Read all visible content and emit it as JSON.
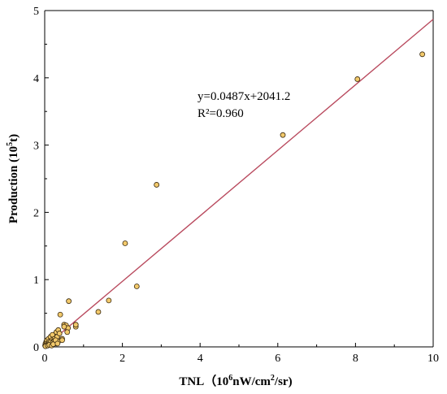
{
  "chart_data": {
    "type": "scatter",
    "xlabel": {
      "main": "TNL（",
      "exp_base": "10",
      "exp": "6",
      "unit": "nW/cm",
      "unit_exp": "2",
      "unit_tail": "/sr)"
    },
    "ylabel": {
      "main": "Production (10",
      "exp": "5",
      "tail": "t)"
    },
    "xlim": [
      0,
      10
    ],
    "ylim": [
      0,
      5
    ],
    "x_ticks": [
      "0",
      "2",
      "4",
      "6",
      "8",
      "10"
    ],
    "y_ticks": [
      "0",
      "1",
      "2",
      "3",
      "4",
      "5"
    ],
    "equation": "y=0.0487x+2041.2",
    "r2_label": "R²=0.960",
    "fit_line": {
      "x": [
        0,
        10
      ],
      "y": [
        0,
        4.87
      ]
    },
    "points": {
      "x": [
        0.01,
        0.02,
        0.03,
        0.04,
        0.05,
        0.06,
        0.08,
        0.1,
        0.12,
        0.15,
        0.18,
        0.2,
        0.25,
        0.3,
        0.32,
        0.35,
        0.05,
        0.1,
        0.15,
        0.2,
        0.25,
        0.3,
        0.35,
        0.4,
        0.45,
        0.5,
        0.55,
        0.6,
        0.02,
        0.08,
        0.12,
        0.18,
        0.22,
        0.28,
        0.33,
        0.38,
        0.45,
        0.5,
        0.58,
        0.62,
        0.8,
        0.8,
        1.38,
        1.65,
        2.07,
        2.37,
        2.88,
        6.13,
        8.05,
        9.72
      ],
      "y": [
        0.02,
        0.05,
        0.03,
        0.08,
        0.06,
        0.1,
        0.05,
        0.12,
        0.08,
        0.15,
        0.1,
        0.18,
        0.12,
        0.22,
        0.15,
        0.25,
        0.02,
        0.04,
        0.07,
        0.06,
        0.09,
        0.05,
        0.08,
        0.48,
        0.12,
        0.33,
        0.32,
        0.28,
        0.01,
        0.02,
        0.03,
        0.02,
        0.04,
        0.1,
        0.05,
        0.2,
        0.1,
        0.3,
        0.22,
        0.68,
        0.3,
        0.33,
        0.52,
        0.69,
        1.54,
        0.9,
        2.41,
        3.15,
        3.98,
        4.35
      ]
    },
    "colors": {
      "point_fill": "#f2c96b",
      "point_stroke": "#3a2a10",
      "line": "#b94a5e",
      "axis": "#000000"
    }
  }
}
